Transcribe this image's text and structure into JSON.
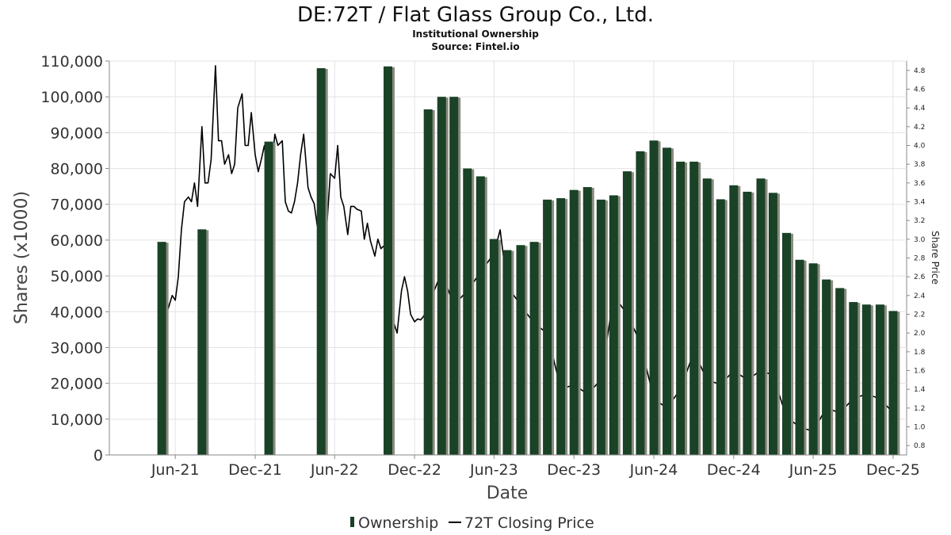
{
  "chart_data": {
    "type": "bar",
    "title": "DE:72T / Flat Glass Group Co., Ltd.",
    "subtitle": "Institutional Ownership",
    "source": "Source: Fintel.io",
    "xlabel": "Date",
    "ylabel": "Shares (x1000)",
    "y2label": "Share Price",
    "ylim": [
      0,
      110000
    ],
    "y2lim": [
      0.7,
      4.9
    ],
    "grid": true,
    "legend_position": "bottom",
    "colors": {
      "bar": "#1a4226",
      "bar_shadow": "#8a8a80",
      "line": "#000000",
      "grid": "#e3e3e3",
      "frame": "#888888"
    },
    "y_ticks": [
      {
        "value": 0,
        "label": "0"
      },
      {
        "value": 10000,
        "label": "10,000"
      },
      {
        "value": 20000,
        "label": "20,000"
      },
      {
        "value": 30000,
        "label": "30,000"
      },
      {
        "value": 40000,
        "label": "40,000"
      },
      {
        "value": 50000,
        "label": "50,000"
      },
      {
        "value": 60000,
        "label": "60,000"
      },
      {
        "value": 70000,
        "label": "70,000"
      },
      {
        "value": 80000,
        "label": "80,000"
      },
      {
        "value": 90000,
        "label": "90,000"
      },
      {
        "value": 100000,
        "label": "100,000"
      },
      {
        "value": 110000,
        "label": "110,000"
      }
    ],
    "y2_ticks": [
      "0.8",
      "1.0",
      "1.2",
      "1.4",
      "1.6",
      "1.8",
      "2.0",
      "2.2",
      "2.4",
      "2.6",
      "2.8",
      "3.0",
      "3.2",
      "3.4",
      "3.6",
      "3.8",
      "4.0",
      "4.2",
      "4.4",
      "4.6",
      "4.8"
    ],
    "x_ticks": [
      {
        "date": "2021-06-01",
        "label": "Jun-21"
      },
      {
        "date": "2021-12-01",
        "label": "Dec-21"
      },
      {
        "date": "2022-06-01",
        "label": "Jun-22"
      },
      {
        "date": "2022-12-01",
        "label": "Dec-22"
      },
      {
        "date": "2023-06-01",
        "label": "Jun-23"
      },
      {
        "date": "2023-12-01",
        "label": "Dec-23"
      },
      {
        "date": "2024-06-01",
        "label": "Jun-24"
      },
      {
        "date": "2024-12-01",
        "label": "Dec-24"
      },
      {
        "date": "2025-06-01",
        "label": "Jun-25"
      },
      {
        "date": "2025-12-01",
        "label": "Dec-25"
      }
    ],
    "xlim": [
      "2021-01-01",
      "2026-01-01"
    ],
    "series": [
      {
        "name": "Ownership",
        "type": "bar",
        "points": [
          {
            "x": "2021-05-01",
            "y": 59500
          },
          {
            "x": "2021-08-01",
            "y": 63000
          },
          {
            "x": "2022-01-01",
            "y": 87500
          },
          {
            "x": "2022-05-01",
            "y": 108000
          },
          {
            "x": "2022-10-01",
            "y": 108500
          },
          {
            "x": "2023-01-01",
            "y": 96500
          },
          {
            "x": "2023-02-01",
            "y": 100000
          },
          {
            "x": "2023-03-01",
            "y": 100000
          },
          {
            "x": "2023-04-01",
            "y": 80000
          },
          {
            "x": "2023-05-01",
            "y": 77800
          },
          {
            "x": "2023-06-01",
            "y": 60300
          },
          {
            "x": "2023-07-01",
            "y": 57200
          },
          {
            "x": "2023-08-01",
            "y": 58600
          },
          {
            "x": "2023-09-01",
            "y": 59500
          },
          {
            "x": "2023-10-01",
            "y": 71300
          },
          {
            "x": "2023-11-01",
            "y": 71700
          },
          {
            "x": "2023-12-01",
            "y": 74000
          },
          {
            "x": "2024-01-01",
            "y": 74800
          },
          {
            "x": "2024-02-01",
            "y": 71300
          },
          {
            "x": "2024-03-01",
            "y": 72500
          },
          {
            "x": "2024-04-01",
            "y": 79200
          },
          {
            "x": "2024-05-01",
            "y": 84800
          },
          {
            "x": "2024-06-01",
            "y": 87800
          },
          {
            "x": "2024-07-01",
            "y": 85800
          },
          {
            "x": "2024-08-01",
            "y": 81900
          },
          {
            "x": "2024-09-01",
            "y": 81900
          },
          {
            "x": "2024-10-01",
            "y": 77200
          },
          {
            "x": "2024-11-01",
            "y": 71400
          },
          {
            "x": "2024-12-01",
            "y": 75300
          },
          {
            "x": "2025-01-01",
            "y": 73500
          },
          {
            "x": "2025-02-01",
            "y": 77200
          },
          {
            "x": "2025-03-01",
            "y": 73200
          },
          {
            "x": "2025-04-01",
            "y": 62000
          },
          {
            "x": "2025-05-01",
            "y": 54500
          },
          {
            "x": "2025-06-01",
            "y": 53500
          },
          {
            "x": "2025-07-01",
            "y": 49000
          },
          {
            "x": "2025-08-01",
            "y": 46600
          },
          {
            "x": "2025-09-01",
            "y": 42700
          },
          {
            "x": "2025-10-01",
            "y": 42000
          },
          {
            "x": "2025-11-01",
            "y": 42000
          },
          {
            "x": "2025-12-01",
            "y": 40200
          }
        ]
      },
      {
        "name": "72T Closing Price",
        "type": "line",
        "axis": "right",
        "points": [
          {
            "x": "2021-05-15",
            "y": 2.25
          },
          {
            "x": "2021-05-25",
            "y": 2.4
          },
          {
            "x": "2021-06-01",
            "y": 2.35
          },
          {
            "x": "2021-06-08",
            "y": 2.6
          },
          {
            "x": "2021-06-15",
            "y": 3.1
          },
          {
            "x": "2021-06-22",
            "y": 3.4
          },
          {
            "x": "2021-07-01",
            "y": 3.45
          },
          {
            "x": "2021-07-08",
            "y": 3.4
          },
          {
            "x": "2021-07-15",
            "y": 3.6
          },
          {
            "x": "2021-07-22",
            "y": 3.35
          },
          {
            "x": "2021-08-01",
            "y": 4.2
          },
          {
            "x": "2021-08-08",
            "y": 3.6
          },
          {
            "x": "2021-08-15",
            "y": 3.6
          },
          {
            "x": "2021-08-22",
            "y": 3.85
          },
          {
            "x": "2021-09-01",
            "y": 4.85
          },
          {
            "x": "2021-09-08",
            "y": 4.05
          },
          {
            "x": "2021-09-15",
            "y": 4.05
          },
          {
            "x": "2021-09-22",
            "y": 3.8
          },
          {
            "x": "2021-10-01",
            "y": 3.9
          },
          {
            "x": "2021-10-08",
            "y": 3.7
          },
          {
            "x": "2021-10-15",
            "y": 3.8
          },
          {
            "x": "2021-10-22",
            "y": 4.4
          },
          {
            "x": "2021-11-01",
            "y": 4.55
          },
          {
            "x": "2021-11-08",
            "y": 4.0
          },
          {
            "x": "2021-11-15",
            "y": 4.0
          },
          {
            "x": "2021-11-22",
            "y": 4.35
          },
          {
            "x": "2021-12-01",
            "y": 3.9
          },
          {
            "x": "2021-12-08",
            "y": 3.72
          },
          {
            "x": "2021-12-15",
            "y": 3.85
          },
          {
            "x": "2021-12-22",
            "y": 4.0
          },
          {
            "x": "2022-01-01",
            "y": 3.6
          },
          {
            "x": "2022-01-08",
            "y": 3.75
          },
          {
            "x": "2022-01-15",
            "y": 4.12
          },
          {
            "x": "2022-01-22",
            "y": 4.0
          },
          {
            "x": "2022-02-01",
            "y": 4.05
          },
          {
            "x": "2022-02-08",
            "y": 3.4
          },
          {
            "x": "2022-02-15",
            "y": 3.3
          },
          {
            "x": "2022-02-22",
            "y": 3.28
          },
          {
            "x": "2022-03-01",
            "y": 3.4
          },
          {
            "x": "2022-03-08",
            "y": 3.6
          },
          {
            "x": "2022-03-15",
            "y": 3.9
          },
          {
            "x": "2022-03-22",
            "y": 4.12
          },
          {
            "x": "2022-04-01",
            "y": 3.55
          },
          {
            "x": "2022-04-08",
            "y": 3.45
          },
          {
            "x": "2022-04-15",
            "y": 3.38
          },
          {
            "x": "2022-04-22",
            "y": 3.15
          },
          {
            "x": "2022-05-01",
            "y": 3.0
          },
          {
            "x": "2022-05-08",
            "y": 2.8
          },
          {
            "x": "2022-05-15",
            "y": 3.2
          },
          {
            "x": "2022-05-22",
            "y": 3.7
          },
          {
            "x": "2022-06-01",
            "y": 3.65
          },
          {
            "x": "2022-06-08",
            "y": 4.0
          },
          {
            "x": "2022-06-15",
            "y": 3.45
          },
          {
            "x": "2022-06-22",
            "y": 3.35
          },
          {
            "x": "2022-07-01",
            "y": 3.05
          },
          {
            "x": "2022-07-08",
            "y": 3.35
          },
          {
            "x": "2022-07-15",
            "y": 3.35
          },
          {
            "x": "2022-07-22",
            "y": 3.32
          },
          {
            "x": "2022-08-01",
            "y": 3.3
          },
          {
            "x": "2022-08-08",
            "y": 3.0
          },
          {
            "x": "2022-08-15",
            "y": 3.17
          },
          {
            "x": "2022-08-22",
            "y": 2.98
          },
          {
            "x": "2022-09-01",
            "y": 2.82
          },
          {
            "x": "2022-09-08",
            "y": 3.0
          },
          {
            "x": "2022-09-15",
            "y": 2.9
          },
          {
            "x": "2022-09-22",
            "y": 2.93
          },
          {
            "x": "2022-10-01",
            "y": 2.25
          },
          {
            "x": "2022-10-08",
            "y": 2.15
          },
          {
            "x": "2022-10-15",
            "y": 2.1
          },
          {
            "x": "2022-10-22",
            "y": 2.0
          },
          {
            "x": "2022-11-01",
            "y": 2.45
          },
          {
            "x": "2022-11-08",
            "y": 2.6
          },
          {
            "x": "2022-11-15",
            "y": 2.45
          },
          {
            "x": "2022-11-22",
            "y": 2.2
          },
          {
            "x": "2022-12-01",
            "y": 2.12
          },
          {
            "x": "2022-12-08",
            "y": 2.15
          },
          {
            "x": "2022-12-15",
            "y": 2.14
          },
          {
            "x": "2022-12-22",
            "y": 2.18
          },
          {
            "x": "2023-02-01",
            "y": 2.65
          },
          {
            "x": "2023-03-01",
            "y": 2.3
          },
          {
            "x": "2023-04-01",
            "y": 2.45
          },
          {
            "x": "2023-06-01",
            "y": 2.85
          },
          {
            "x": "2023-06-15",
            "y": 3.1
          },
          {
            "x": "2023-07-01",
            "y": 2.5
          },
          {
            "x": "2023-08-01",
            "y": 2.3
          },
          {
            "x": "2023-09-01",
            "y": 2.1
          },
          {
            "x": "2023-10-01",
            "y": 2.0
          },
          {
            "x": "2023-11-01",
            "y": 1.4
          },
          {
            "x": "2023-12-01",
            "y": 1.45
          },
          {
            "x": "2024-01-01",
            "y": 1.35
          },
          {
            "x": "2024-02-01",
            "y": 1.5
          },
          {
            "x": "2024-03-01",
            "y": 2.4
          },
          {
            "x": "2024-04-01",
            "y": 2.2
          },
          {
            "x": "2024-05-01",
            "y": 1.9
          },
          {
            "x": "2024-06-01",
            "y": 1.3
          },
          {
            "x": "2024-07-01",
            "y": 1.2
          },
          {
            "x": "2024-08-01",
            "y": 1.4
          },
          {
            "x": "2024-09-01",
            "y": 1.8
          },
          {
            "x": "2024-10-01",
            "y": 1.5
          },
          {
            "x": "2024-11-01",
            "y": 1.45
          },
          {
            "x": "2024-12-01",
            "y": 1.6
          },
          {
            "x": "2025-01-01",
            "y": 1.5
          },
          {
            "x": "2025-02-01",
            "y": 1.6
          },
          {
            "x": "2025-03-01",
            "y": 1.55
          },
          {
            "x": "2025-04-01",
            "y": 1.1
          },
          {
            "x": "2025-05-01",
            "y": 1.0
          },
          {
            "x": "2025-06-01",
            "y": 0.95
          },
          {
            "x": "2025-07-01",
            "y": 1.2
          },
          {
            "x": "2025-08-01",
            "y": 1.15
          },
          {
            "x": "2025-09-01",
            "y": 1.3
          },
          {
            "x": "2025-10-01",
            "y": 1.35
          },
          {
            "x": "2025-11-01",
            "y": 1.3
          },
          {
            "x": "2025-12-01",
            "y": 1.15
          }
        ]
      }
    ]
  },
  "legend": {
    "ownership_label": "Ownership",
    "price_label": "72T Closing Price"
  }
}
